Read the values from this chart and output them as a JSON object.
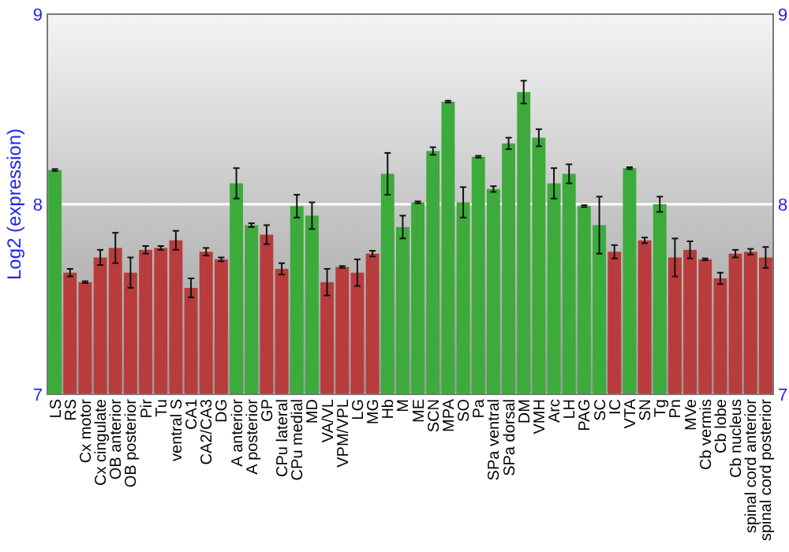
{
  "chart_data": {
    "type": "bar",
    "ylabel": "Log2 (expression)",
    "categories": [
      "LS",
      "RS",
      "Cx motor",
      "Cx cingulate",
      "OB anterior",
      "OB posterior",
      "Pir",
      "Tu",
      "ventral S",
      "CA1",
      "CA2/CA3",
      "DG",
      "A anterior",
      "A posterior",
      "GP",
      "CPu lateral",
      "CPu medial",
      "MD",
      "VA/VL",
      "VPM/VPL",
      "LG",
      "MG",
      "Hb",
      "M",
      "ME",
      "SCN",
      "MPA",
      "SO",
      "Pa",
      "SPa ventral",
      "SPa dorsal",
      "DM",
      "VMH",
      "Arc",
      "LH",
      "PAG",
      "SC",
      "IC",
      "VTA",
      "SN",
      "Tg",
      "Pn",
      "MVe",
      "Cb vermis",
      "Cb lobe",
      "Cb nucleus",
      "spinal cord anterior",
      "spinal cord posterior"
    ],
    "values": [
      8.18,
      7.64,
      7.59,
      7.72,
      7.77,
      7.64,
      7.76,
      7.77,
      7.81,
      7.56,
      7.75,
      7.71,
      8.11,
      7.89,
      7.84,
      7.66,
      7.99,
      7.94,
      7.59,
      7.67,
      7.64,
      7.74,
      8.16,
      7.88,
      8.01,
      8.28,
      8.54,
      8.01,
      8.25,
      8.08,
      8.32,
      8.59,
      8.35,
      8.11,
      8.16,
      7.99,
      7.89,
      7.75,
      8.19,
      7.81,
      8.0,
      7.72,
      7.76,
      7.71,
      7.61,
      7.74,
      7.75,
      7.72
    ],
    "errors": [
      0.005,
      0.02,
      0.005,
      0.04,
      0.08,
      0.08,
      0.02,
      0.01,
      0.05,
      0.05,
      0.02,
      0.01,
      0.08,
      0.01,
      0.05,
      0.03,
      0.06,
      0.07,
      0.07,
      0.005,
      0.07,
      0.015,
      0.11,
      0.06,
      0.005,
      0.02,
      0.005,
      0.08,
      0.005,
      0.015,
      0.03,
      0.06,
      0.045,
      0.08,
      0.05,
      0.005,
      0.15,
      0.035,
      0.005,
      0.015,
      0.04,
      0.1,
      0.045,
      0.005,
      0.03,
      0.02,
      0.015,
      0.055
    ],
    "colors": [
      "#3cab3c",
      "#b83c3c",
      "#b83c3c",
      "#b83c3c",
      "#b83c3c",
      "#b83c3c",
      "#b83c3c",
      "#b83c3c",
      "#b83c3c",
      "#b83c3c",
      "#b83c3c",
      "#b83c3c",
      "#3cab3c",
      "#3cab3c",
      "#b83c3c",
      "#b83c3c",
      "#3cab3c",
      "#3cab3c",
      "#b83c3c",
      "#b83c3c",
      "#b83c3c",
      "#b83c3c",
      "#3cab3c",
      "#3cab3c",
      "#3cab3c",
      "#3cab3c",
      "#3cab3c",
      "#3cab3c",
      "#3cab3c",
      "#3cab3c",
      "#3cab3c",
      "#3cab3c",
      "#3cab3c",
      "#3cab3c",
      "#3cab3c",
      "#3cab3c",
      "#3cab3c",
      "#b83c3c",
      "#3cab3c",
      "#b83c3c",
      "#3cab3c",
      "#b83c3c",
      "#b83c3c",
      "#b83c3c",
      "#b83c3c",
      "#b83c3c",
      "#b83c3c",
      "#b83c3c"
    ],
    "ylim": [
      7,
      9
    ],
    "yticks": [
      7,
      8,
      9
    ],
    "y2lim": [
      7,
      9
    ],
    "y2ticks": [
      7,
      8,
      9
    ],
    "grid": "y"
  }
}
